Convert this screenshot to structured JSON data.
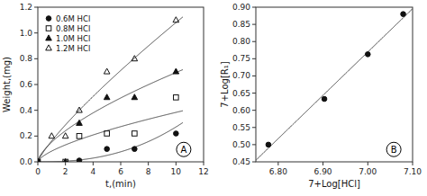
{
  "chart_data": [
    {
      "type": "scatter",
      "x_label": "t,(min)",
      "y_label": "Weight,(mg)",
      "legend": "upper left",
      "annotation": "A",
      "series": [
        {
          "name": "0.6M HCl",
          "marker": "circle",
          "color": "#111111",
          "x": [
            0,
            3,
            5,
            7,
            10
          ],
          "values": [
            0.0,
            0.01,
            0.1,
            0.1,
            0.22
          ],
          "fit": {
            "a": 0.000988,
            "n": 2.4375,
            "range": [
              0,
              10.5
            ],
            "color": "#444444"
          }
        },
        {
          "name": "0.8M HCl",
          "marker": "square-open",
          "color": "#111111",
          "x": [
            0,
            2,
            3,
            5,
            7,
            10
          ],
          "values": [
            0.0,
            0.0,
            0.2,
            0.22,
            0.22,
            0.5
          ],
          "fit": {
            "a": 0.082963,
            "n": 0.665075,
            "range": [
              0,
              10.5
            ],
            "color": "#444444"
          }
        },
        {
          "name": "1.0M HCl",
          "marker": "triangle",
          "color": "#111111",
          "x": [
            0,
            2,
            3,
            5,
            7,
            10
          ],
          "values": [
            0.0,
            0.0,
            0.3,
            0.5,
            0.5,
            0.7
          ],
          "fit": {
            "a": 0.152855,
            "n": 0.656377,
            "range": [
              0,
              10.5
            ],
            "color": "#444444"
          }
        },
        {
          "name": "1.2M HCl",
          "marker": "triangle-open",
          "color": "#111111",
          "x": [
            0,
            1,
            2,
            3,
            5,
            7,
            10
          ],
          "values": [
            0.0,
            0.2,
            0.2,
            0.4,
            0.7,
            0.8,
            1.1
          ],
          "fit": {
            "a": 0.161856,
            "n": 0.824429,
            "range": [
              0,
              10.5
            ],
            "color": "#444444"
          }
        }
      ],
      "xlim": [
        0,
        12
      ],
      "ylim": [
        0.0,
        1.2
      ],
      "xticks": [
        0,
        2,
        4,
        6,
        8,
        10,
        12
      ],
      "yticks": [
        {
          "value": 0.0,
          "label": "0.0"
        },
        0.2,
        0.4,
        0.6,
        0.8,
        {
          "value": 1.0,
          "label": "1.0"
        },
        1.2
      ]
    },
    {
      "type": "scatter",
      "x_label": "7+Log[HCl]",
      "y_label": "7+Log[R₁]",
      "annotation": "B",
      "marker": "circle",
      "color": "#111111",
      "x": [
        6.778,
        6.903,
        7.0,
        7.079
      ],
      "values": [
        0.5,
        0.633,
        0.763,
        0.88
      ],
      "fit": {
        "slope": 1.260122,
        "intercept": -8.051247,
        "range": [
          6.75,
          7.105
        ],
        "color": "#444444"
      },
      "xlim": [
        6.75,
        7.1
      ],
      "ylim": [
        0.45,
        0.9
      ],
      "xticks": [
        {
          "value": 6.8,
          "label": "6.80"
        },
        {
          "value": 6.9,
          "label": "6.90"
        },
        {
          "value": 7.0,
          "label": "7.00"
        },
        {
          "value": 7.1,
          "label": "7.10"
        }
      ],
      "yticks": [
        0.45,
        {
          "value": 0.5,
          "label": "0.50"
        },
        0.55,
        {
          "value": 0.6,
          "label": "0.60"
        },
        0.65,
        {
          "value": 0.7,
          "label": "0.70"
        },
        0.75,
        {
          "value": 0.8,
          "label": "0.80"
        },
        0.85,
        {
          "value": 0.9,
          "label": "0.90"
        }
      ]
    }
  ]
}
